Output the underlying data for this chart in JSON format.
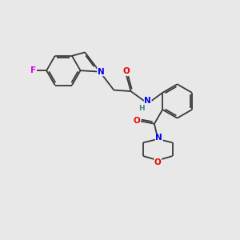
{
  "background_color": "#e8e8e8",
  "bond_color": "#3a3a3a",
  "atom_colors": {
    "F": "#dd00dd",
    "N": "#0000ee",
    "O": "#ee0000",
    "H": "#448888",
    "C": "#000000"
  },
  "lw": 1.3,
  "fs": 7.5
}
